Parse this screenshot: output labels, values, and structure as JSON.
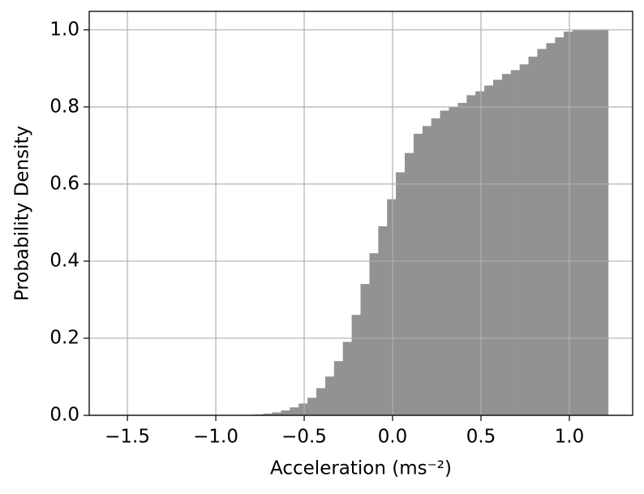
{
  "chart_data": {
    "type": "histogram",
    "xlabel": "Acceleration (ms⁻²)",
    "ylabel": "Probability Density",
    "bins": [
      -0.88,
      -0.83,
      -0.78,
      -0.73,
      -0.68,
      -0.63,
      -0.58,
      -0.53,
      -0.48,
      -0.43,
      -0.38,
      -0.33,
      -0.28,
      -0.23,
      -0.18,
      -0.13,
      -0.08,
      -0.03,
      0.02,
      0.07,
      0.12,
      0.17,
      0.22,
      0.27,
      0.32,
      0.37,
      0.42,
      0.47,
      0.52,
      0.57,
      0.62,
      0.67,
      0.72,
      0.77,
      0.82,
      0.87,
      0.92,
      0.97,
      1.02,
      1.07,
      1.12,
      1.17,
      1.22
    ],
    "values": [
      0,
      0.001,
      0.002,
      0.004,
      0.007,
      0.012,
      0.02,
      0.03,
      0.045,
      0.07,
      0.1,
      0.14,
      0.19,
      0.26,
      0.34,
      0.42,
      0.49,
      0.56,
      0.63,
      0.68,
      0.73,
      0.75,
      0.77,
      0.79,
      0.8,
      0.81,
      0.83,
      0.84,
      0.855,
      0.87,
      0.885,
      0.895,
      0.91,
      0.93,
      0.95,
      0.965,
      0.98,
      0.995,
      1.0,
      1.0,
      1.0,
      1.0
    ],
    "color": "#929292",
    "xlim": [
      -1.716,
      1.358
    ],
    "ylim": [
      0,
      1.048
    ],
    "xticks": [
      {
        "value": -1.5,
        "label": "−1.5"
      },
      {
        "value": -1.0,
        "label": "−1.0"
      },
      {
        "value": -0.5,
        "label": "−0.5"
      },
      {
        "value": 0,
        "label": "0.0"
      },
      {
        "value": 0.5,
        "label": "0.5"
      },
      {
        "value": 1.0,
        "label": "1.0"
      }
    ],
    "yticks": [
      {
        "value": 0,
        "label": "0.0"
      },
      {
        "value": 0.2,
        "label": "0.2"
      },
      {
        "value": 0.4,
        "label": "0.4"
      },
      {
        "value": 0.6,
        "label": "0.6"
      },
      {
        "value": 0.8,
        "label": "0.8"
      },
      {
        "value": 1.0,
        "label": "1.0"
      }
    ],
    "grid": true
  }
}
